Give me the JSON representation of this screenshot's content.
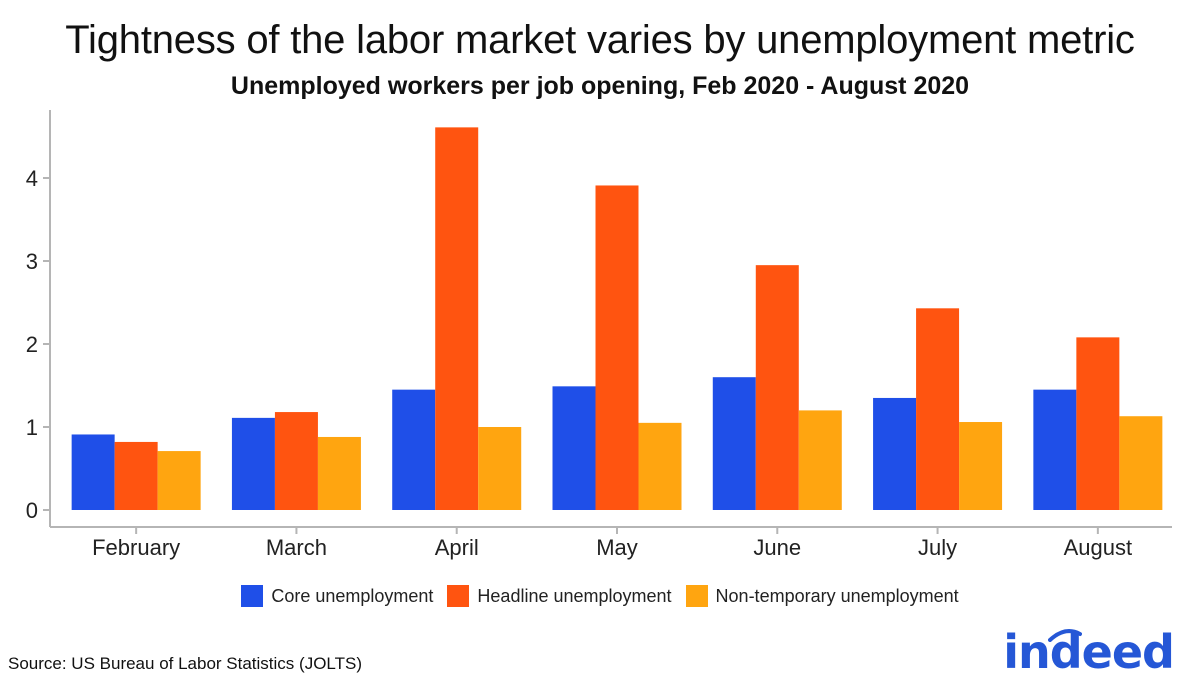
{
  "chart_data": {
    "type": "bar",
    "title": "Tightness of the labor market varies by unemployment metric",
    "subtitle": "Unemployed workers per job opening, Feb 2020 - August 2020",
    "xlabel": "",
    "ylabel": "",
    "ylim": [
      0,
      4.75
    ],
    "yticks": [
      0,
      1,
      2,
      3,
      4
    ],
    "categories": [
      "February",
      "March",
      "April",
      "May",
      "June",
      "July",
      "August"
    ],
    "series": [
      {
        "name": "Core unemployment",
        "color": "#1f4fe8",
        "values": [
          0.91,
          1.11,
          1.45,
          1.49,
          1.6,
          1.35,
          1.45
        ]
      },
      {
        "name": "Headline unemployment",
        "color": "#ff5410",
        "values": [
          0.82,
          1.18,
          4.61,
          3.91,
          2.95,
          2.43,
          2.08
        ]
      },
      {
        "name": "Non-temporary unemployment",
        "color": "#ffa510",
        "values": [
          0.71,
          0.88,
          1.0,
          1.05,
          1.2,
          1.06,
          1.13
        ]
      }
    ],
    "grid": false,
    "legend_position": "bottom"
  },
  "source": "Source: US Bureau of Labor Statistics (JOLTS)",
  "logo_text": "indeed"
}
